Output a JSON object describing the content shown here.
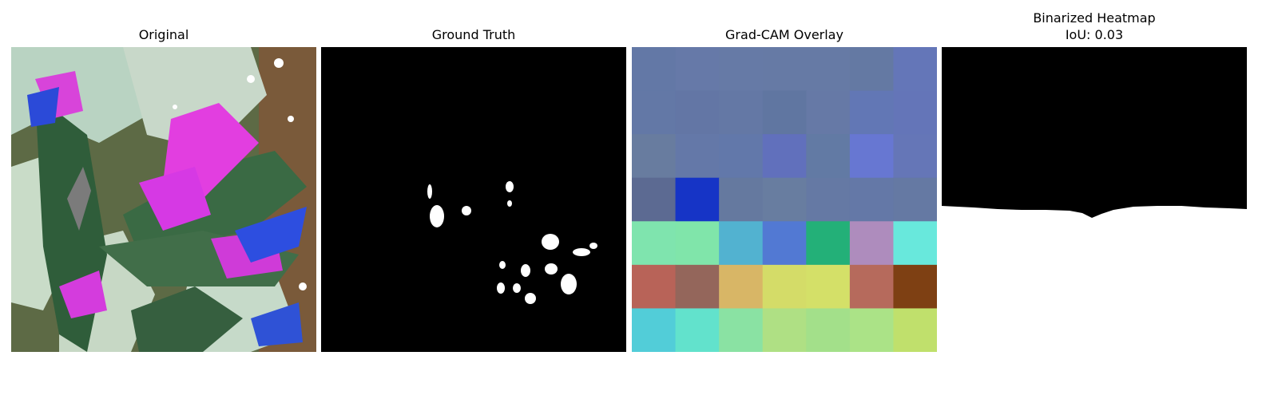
{
  "panels": [
    {
      "title": "Original"
    },
    {
      "title": "Ground Truth"
    },
    {
      "title": "Grad-CAM Overlay"
    },
    {
      "title": "Binarized Heatmap",
      "subtitle": "IoU: 0.03"
    }
  ],
  "gradcam_grid": {
    "rows": 7,
    "cols": 7,
    "colors": [
      [
        "#6378a6",
        "#6679a8",
        "#667aa6",
        "#667aa5",
        "#667aa5",
        "#6479a3",
        "#6476b8"
      ],
      [
        "#6378a6",
        "#6376a5",
        "#6478a5",
        "#6076a1",
        "#6679a6",
        "#6277b5",
        "#6475b8"
      ],
      [
        "#687c9f",
        "#6478a8",
        "#6278aa",
        "#6170bc",
        "#627aa4",
        "#6777d2",
        "#6576b7"
      ],
      [
        "#5c6a92",
        "#1634c6",
        "#65799f",
        "#687da0",
        "#6579a4",
        "#6478a7",
        "#6579a3"
      ],
      [
        "#7fe4ae",
        "#80e5aa",
        "#52b2d0",
        "#5279d3",
        "#23b078",
        "#ae8cbd",
        "#68e8dc"
      ],
      [
        "#b86358",
        "#94665b",
        "#d8b666",
        "#d4dc68",
        "#d4e068",
        "#b66a5c",
        "#7e4013"
      ],
      [
        "#52cdd8",
        "#62e2cc",
        "#8ae2a3",
        "#afe084",
        "#a3e08a",
        "#abe387",
        "#c0e06c"
      ]
    ]
  },
  "colors": {
    "background": "#ffffff",
    "mask_background": "#000000",
    "mask_foreground": "#ffffff"
  }
}
